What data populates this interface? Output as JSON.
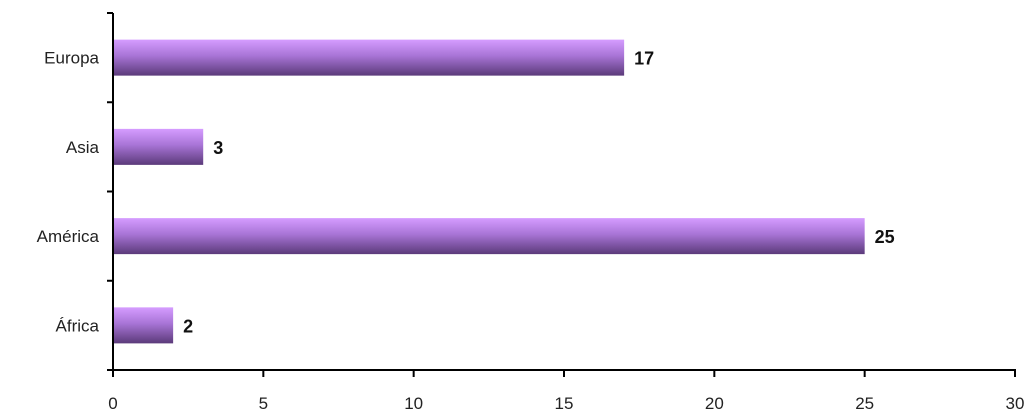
{
  "chart_data": {
    "type": "bar",
    "orientation": "horizontal",
    "categories": [
      "Europa",
      "Asia",
      "América",
      "África"
    ],
    "values": [
      17,
      3,
      25,
      2
    ],
    "data_labels": [
      "17",
      "3",
      "25",
      "2"
    ],
    "xlim": [
      0,
      30
    ],
    "x_ticks": [
      0,
      5,
      10,
      15,
      20,
      25,
      30
    ],
    "x_tick_labels": [
      "0",
      "5",
      "10",
      "15",
      "20",
      "25",
      "30"
    ],
    "grid": false,
    "legend": "none",
    "bar_color_top": "#d59cff",
    "bar_color_bottom": "#5b3a7a"
  }
}
